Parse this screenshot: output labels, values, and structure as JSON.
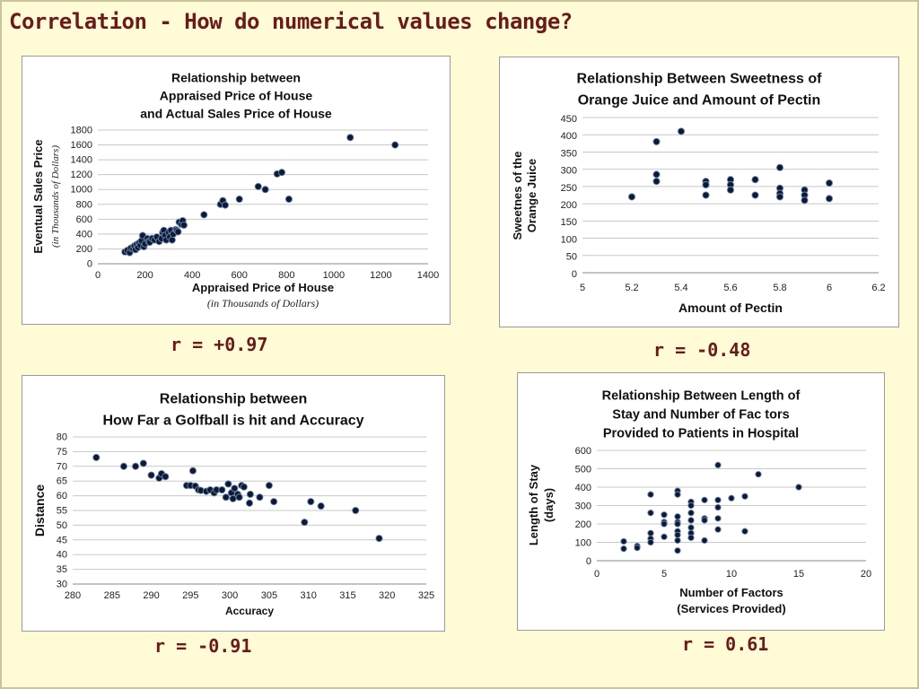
{
  "slide": {
    "title": "Correlation - How do numerical values change?",
    "background": "#fefbd6",
    "title_color": "#6b1a1a"
  },
  "charts": [
    {
      "r_label": "r = +0.97"
    },
    {
      "r_label": "r = -0.48"
    },
    {
      "r_label": "r = -0.91"
    },
    {
      "r_label": "r = 0.61"
    }
  ],
  "chart_data": [
    {
      "type": "scatter",
      "title_lines": [
        "Relationship between",
        "Appraised Price of House",
        "and Actual Sales Price of House"
      ],
      "xlabel": "Appraised Price of House",
      "xlabel_sub": "(in Thousands of Dollars)",
      "ylabel": "Eventual Sales Price",
      "ylabel_sub": "(in Thousands of Dollars)",
      "xlim": [
        0,
        1400
      ],
      "xticks": [
        0,
        200,
        400,
        600,
        800,
        1000,
        1200,
        1400
      ],
      "ylim": [
        0,
        1800
      ],
      "yticks": [
        0,
        200,
        400,
        600,
        800,
        1000,
        1200,
        1400,
        1600,
        1800
      ],
      "points": [
        [
          115,
          160
        ],
        [
          125,
          180
        ],
        [
          135,
          150
        ],
        [
          140,
          210
        ],
        [
          150,
          200
        ],
        [
          155,
          240
        ],
        [
          160,
          190
        ],
        [
          165,
          260
        ],
        [
          170,
          220
        ],
        [
          175,
          280
        ],
        [
          180,
          250
        ],
        [
          185,
          310
        ],
        [
          190,
          380
        ],
        [
          195,
          230
        ],
        [
          200,
          270
        ],
        [
          210,
          340
        ],
        [
          215,
          300
        ],
        [
          220,
          290
        ],
        [
          230,
          340
        ],
        [
          240,
          320
        ],
        [
          250,
          360
        ],
        [
          260,
          300
        ],
        [
          270,
          340
        ],
        [
          275,
          420
        ],
        [
          280,
          450
        ],
        [
          285,
          380
        ],
        [
          290,
          320
        ],
        [
          300,
          420
        ],
        [
          305,
          360
        ],
        [
          310,
          450
        ],
        [
          315,
          320
        ],
        [
          320,
          400
        ],
        [
          330,
          460
        ],
        [
          335,
          450
        ],
        [
          340,
          430
        ],
        [
          345,
          560
        ],
        [
          355,
          530
        ],
        [
          360,
          580
        ],
        [
          365,
          520
        ],
        [
          450,
          660
        ],
        [
          520,
          800
        ],
        [
          530,
          850
        ],
        [
          540,
          790
        ],
        [
          600,
          870
        ],
        [
          680,
          1040
        ],
        [
          710,
          1000
        ],
        [
          760,
          1210
        ],
        [
          780,
          1230
        ],
        [
          810,
          870
        ],
        [
          1070,
          1700
        ],
        [
          1260,
          1600
        ]
      ]
    },
    {
      "type": "scatter",
      "title_lines": [
        "Relationship Between Sweetness of",
        "Orange Juice and Amount of Pectin"
      ],
      "xlabel": "Amount of Pectin",
      "ylabel_lines": [
        "Sweetnes of the",
        "Orange Juice"
      ],
      "xlim": [
        5,
        6.2
      ],
      "xticks": [
        5,
        5.2,
        5.4,
        5.6,
        5.8,
        6,
        6.2
      ],
      "ylim": [
        0,
        450
      ],
      "yticks": [
        0,
        50,
        100,
        150,
        200,
        250,
        300,
        350,
        400,
        450
      ],
      "points": [
        [
          5.2,
          220
        ],
        [
          5.3,
          380
        ],
        [
          5.3,
          285
        ],
        [
          5.3,
          265
        ],
        [
          5.4,
          410
        ],
        [
          5.5,
          265
        ],
        [
          5.5,
          255
        ],
        [
          5.5,
          225
        ],
        [
          5.6,
          270
        ],
        [
          5.6,
          255
        ],
        [
          5.6,
          240
        ],
        [
          5.7,
          270
        ],
        [
          5.7,
          225
        ],
        [
          5.8,
          305
        ],
        [
          5.8,
          245
        ],
        [
          5.8,
          230
        ],
        [
          5.8,
          220
        ],
        [
          5.9,
          240
        ],
        [
          5.9,
          225
        ],
        [
          5.9,
          210
        ],
        [
          6.0,
          260
        ],
        [
          6.0,
          215
        ]
      ]
    },
    {
      "type": "scatter",
      "title_lines": [
        "Relationship between",
        "How Far a Golfball is hit and Accuracy"
      ],
      "xlabel": "Accuracy",
      "ylabel": "Distance",
      "xlim": [
        280,
        325
      ],
      "xticks": [
        280,
        285,
        290,
        295,
        300,
        305,
        310,
        315,
        320,
        325
      ],
      "ylim": [
        30,
        80
      ],
      "yticks": [
        30,
        35,
        40,
        45,
        50,
        55,
        60,
        65,
        70,
        75,
        80
      ],
      "points": [
        [
          283,
          73
        ],
        [
          286.5,
          70
        ],
        [
          288,
          70
        ],
        [
          289,
          71
        ],
        [
          290,
          67
        ],
        [
          291,
          66
        ],
        [
          291.3,
          67.5
        ],
        [
          291.8,
          66.5
        ],
        [
          294.5,
          63.5
        ],
        [
          295,
          63.5
        ],
        [
          295.3,
          68.5
        ],
        [
          295.6,
          63.3
        ],
        [
          296,
          62
        ],
        [
          296.3,
          61.8
        ],
        [
          297,
          61.5
        ],
        [
          297.5,
          62
        ],
        [
          298,
          61
        ],
        [
          298.3,
          62
        ],
        [
          299,
          62
        ],
        [
          299.5,
          59.5
        ],
        [
          299.8,
          64
        ],
        [
          300.2,
          61
        ],
        [
          300.4,
          59
        ],
        [
          300.6,
          62.5
        ],
        [
          301,
          60.5
        ],
        [
          301.2,
          59.5
        ],
        [
          301.5,
          63.5
        ],
        [
          301.8,
          63
        ],
        [
          302.5,
          57.5
        ],
        [
          302.6,
          60.5
        ],
        [
          303.8,
          59.5
        ],
        [
          305,
          63.5
        ],
        [
          305.6,
          58
        ],
        [
          309.5,
          51
        ],
        [
          310.3,
          58
        ],
        [
          311.6,
          56.5
        ],
        [
          316,
          55
        ],
        [
          319,
          45.5
        ]
      ]
    },
    {
      "type": "scatter",
      "title_lines": [
        "Relationship Between Length of",
        "Stay and Number of Fac  tors",
        "Provided to Patients in Hospital"
      ],
      "xlabel_lines": [
        "Number of Factors",
        "(Services Provided)"
      ],
      "ylabel_lines": [
        "Length of Stay",
        "(days)"
      ],
      "xlim": [
        0,
        20
      ],
      "xticks": [
        0,
        5,
        10,
        15,
        20
      ],
      "ylim": [
        0,
        600
      ],
      "yticks": [
        0,
        100,
        200,
        300,
        400,
        500,
        600
      ],
      "points": [
        [
          2,
          105
        ],
        [
          2,
          65
        ],
        [
          3,
          80
        ],
        [
          3,
          70
        ],
        [
          4,
          360
        ],
        [
          4,
          260
        ],
        [
          4,
          150
        ],
        [
          4,
          120
        ],
        [
          4,
          100
        ],
        [
          5,
          250
        ],
        [
          5,
          210
        ],
        [
          5,
          200
        ],
        [
          5,
          130
        ],
        [
          6,
          380
        ],
        [
          6,
          360
        ],
        [
          6,
          240
        ],
        [
          6,
          210
        ],
        [
          6,
          200
        ],
        [
          6,
          160
        ],
        [
          6,
          140
        ],
        [
          6,
          110
        ],
        [
          6,
          55
        ],
        [
          7,
          320
        ],
        [
          7,
          300
        ],
        [
          7,
          260
        ],
        [
          7,
          220
        ],
        [
          7,
          180
        ],
        [
          7,
          150
        ],
        [
          7,
          125
        ],
        [
          8,
          330
        ],
        [
          8,
          230
        ],
        [
          8,
          220
        ],
        [
          8,
          110
        ],
        [
          9,
          520
        ],
        [
          9,
          330
        ],
        [
          9,
          290
        ],
        [
          9,
          230
        ],
        [
          9,
          170
        ],
        [
          10,
          340
        ],
        [
          11,
          350
        ],
        [
          11,
          160
        ],
        [
          12,
          470
        ],
        [
          15,
          400
        ]
      ]
    }
  ]
}
